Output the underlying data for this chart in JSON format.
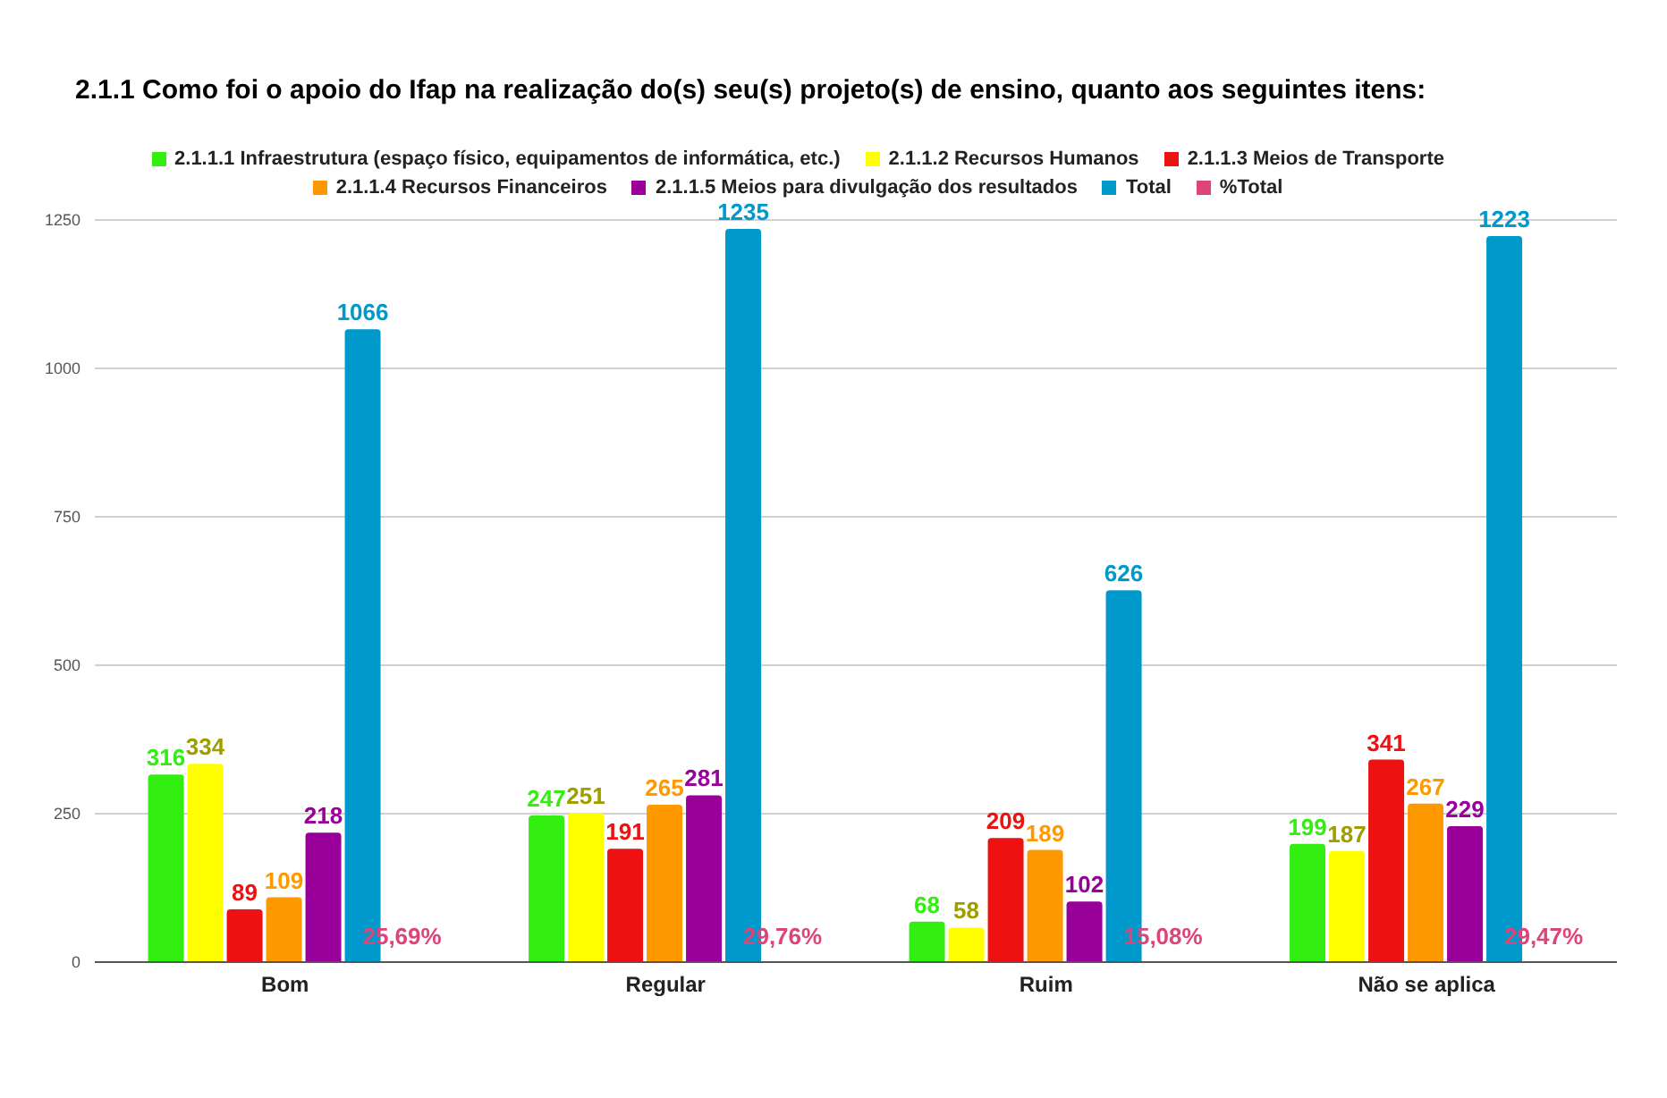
{
  "chart_data": {
    "type": "bar",
    "title": "2.1.1 Como foi o apoio do Ifap na realização do(s) seu(s) projeto(s) de ensino, quanto aos seguintes itens:",
    "categories": [
      "Bom",
      "Regular",
      "Ruim",
      "Não se aplica"
    ],
    "series": [
      {
        "name": "2.1.1.1 Infraestrutura (espaço físico, equipamentos de informática, etc.)",
        "color": "#33ee11",
        "values": [
          316,
          247,
          68,
          199
        ]
      },
      {
        "name": "2.1.1.2 Recursos Humanos",
        "color": "#ffff00",
        "values": [
          334,
          251,
          58,
          187
        ]
      },
      {
        "name": "2.1.1.3 Meios de Transporte",
        "color": "#ee1111",
        "values": [
          89,
          191,
          209,
          341
        ]
      },
      {
        "name": "2.1.1.4 Recursos Financeiros",
        "color": "#ff9900",
        "values": [
          109,
          265,
          189,
          267
        ]
      },
      {
        "name": "2.1.1.5 Meios para divulgação dos resultados",
        "color": "#990099",
        "values": [
          218,
          281,
          102,
          229
        ]
      },
      {
        "name": "Total",
        "color": "#0099cc",
        "values": [
          1066,
          1235,
          626,
          1223
        ]
      },
      {
        "name": "%Total",
        "color": "#dd4477",
        "values": [
          0.2569,
          0.2976,
          0.1508,
          0.2947
        ],
        "value_labels": [
          "25,69%",
          "29,76%",
          "15,08%",
          "29,47%"
        ]
      }
    ],
    "ylim": [
      0,
      1250
    ],
    "yticks": [
      0,
      250,
      500,
      750,
      1000,
      1250
    ],
    "grid": "y",
    "legend": "top",
    "data_labels": true
  }
}
